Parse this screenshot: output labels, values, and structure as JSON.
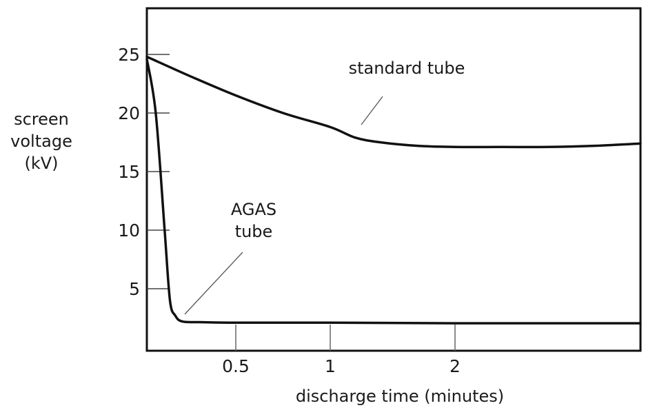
{
  "chart_data": {
    "type": "line",
    "xlabel": "discharge time (minutes)",
    "ylabel": [
      "screen",
      "voltage",
      "(kV)"
    ],
    "x_ticks": [
      {
        "value": 0.5,
        "label": "0.5"
      },
      {
        "value": 1,
        "label": "1"
      },
      {
        "value": 2,
        "label": "2"
      }
    ],
    "y_ticks": [
      {
        "value": 5,
        "label": "5"
      },
      {
        "value": 10,
        "label": "10"
      },
      {
        "value": 15,
        "label": "15"
      },
      {
        "value": 20,
        "label": "20"
      },
      {
        "value": 25,
        "label": "25"
      }
    ],
    "series": [
      {
        "name": "standard tube",
        "x": [
          0,
          0.25,
          0.5,
          0.75,
          1,
          1.2,
          1.4,
          1.7,
          2,
          2.3,
          2.6,
          2.9,
          3.2
        ],
        "y": [
          24.8,
          23.1,
          21.5,
          20.0,
          18.8,
          17.9,
          17.5,
          17.2,
          17.1,
          17.1,
          17.1,
          17.2,
          17.4
        ]
      },
      {
        "name": "AGAS tube",
        "x": [
          0,
          0.05,
          0.1,
          0.13,
          0.16,
          0.2,
          0.3,
          0.5,
          1,
          2,
          3.2
        ],
        "y": [
          24.6,
          20,
          10,
          4,
          2.7,
          2.2,
          2.15,
          2.1,
          2.1,
          2.05,
          2.05
        ]
      }
    ],
    "annotations": [
      {
        "lines": [
          "standard tube"
        ],
        "series": "standard tube"
      },
      {
        "lines": [
          "AGAS",
          "tube"
        ],
        "series": "AGAS tube"
      }
    ],
    "xlim": [
      0,
      3.2
    ],
    "ylim": [
      0,
      28
    ],
    "grid": false,
    "legend": "none"
  }
}
